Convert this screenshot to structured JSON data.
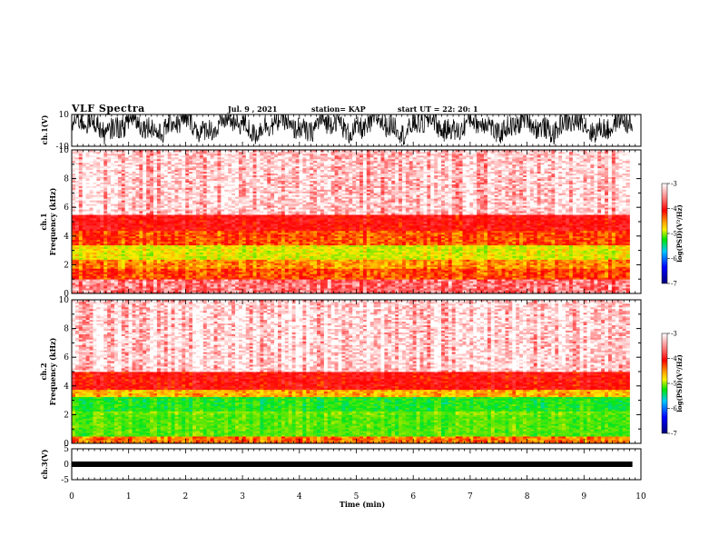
{
  "header": {
    "title": "VLF Spectra",
    "date": "Jul. 9 , 2021",
    "station": "station= KAP",
    "start_ut": "start UT = 22: 20: 1"
  },
  "chart_data": [
    {
      "type": "line",
      "name": "ch1-waveform",
      "ylabel": "ch.1(V)",
      "ylim": [
        -10,
        10
      ],
      "yticks": [
        "10",
        "-10"
      ],
      "xlim": [
        0,
        10
      ],
      "color": "#000000"
    },
    {
      "type": "heatmap",
      "name": "ch1-spectrogram",
      "ylabel": "ch.1 Frequency (kHz)",
      "ylabel_line1": "ch.1",
      "ylabel_line2": "Frequency (kHz)",
      "ylim": [
        0,
        10
      ],
      "yticks": [
        "0",
        "2",
        "4",
        "6",
        "8",
        "10"
      ],
      "xlim": [
        0,
        9.8
      ],
      "bands_khz": [
        {
          "from": 0,
          "to": 1.0,
          "level": -3.4
        },
        {
          "from": 1.0,
          "to": 1.8,
          "level": -4.1
        },
        {
          "from": 1.8,
          "to": 2.4,
          "level": -4.3
        },
        {
          "from": 2.4,
          "to": 3.4,
          "level": -4.7
        },
        {
          "from": 3.4,
          "to": 4.4,
          "level": -4.1
        },
        {
          "from": 4.4,
          "to": 5.5,
          "level": -3.8
        },
        {
          "from": 5.5,
          "to": 10.0,
          "level": -3.15
        }
      ],
      "colorbar": {
        "label": "log(PSD)(V²/Hz)",
        "range": [
          -7,
          -3
        ],
        "ticks": [
          "-3",
          "-4",
          "-5",
          "-6",
          "-7"
        ],
        "colors": [
          "#ffffff",
          "#ff0000",
          "#ffee00",
          "#00e600",
          "#00c8ff",
          "#0000ff",
          "#00007a"
        ]
      }
    },
    {
      "type": "heatmap",
      "name": "ch2-spectrogram",
      "ylabel": "ch.2 Frequency (kHz)",
      "ylabel_line1": "ch.2",
      "ylabel_line2": "Frequency (kHz)",
      "ylim": [
        0,
        10
      ],
      "yticks": [
        "0",
        "2",
        "4",
        "6",
        "8",
        "10"
      ],
      "xlim": [
        0,
        9.8
      ],
      "bands_khz": [
        {
          "from": 0,
          "to": 0.5,
          "level": -4.2
        },
        {
          "from": 0.5,
          "to": 2.0,
          "level": -5.1
        },
        {
          "from": 2.0,
          "to": 2.3,
          "level": -5.0
        },
        {
          "from": 2.3,
          "to": 3.2,
          "level": -5.3
        },
        {
          "from": 3.2,
          "to": 3.8,
          "level": -4.4
        },
        {
          "from": 3.8,
          "to": 5.0,
          "level": -3.8
        },
        {
          "from": 5.0,
          "to": 10.0,
          "level": -3.1
        }
      ],
      "colorbar": {
        "label": "log(PSD)(V²/Hz)",
        "range": [
          -7,
          -3
        ],
        "ticks": [
          "-3",
          "-4",
          "-5",
          "-6",
          "-7"
        ]
      }
    },
    {
      "type": "line",
      "name": "ch3-waveform",
      "ylabel": "ch.3(V)",
      "ylim": [
        -5,
        5
      ],
      "yticks": [
        "5",
        "0",
        "-5"
      ],
      "xlim": [
        0,
        10
      ],
      "level_v": 0,
      "color": "#000000"
    }
  ],
  "xaxis": {
    "label": "Time (min)",
    "ticks": [
      "0",
      "1",
      "2",
      "3",
      "4",
      "5",
      "6",
      "7",
      "8",
      "9",
      "10"
    ],
    "range": [
      0,
      10
    ]
  }
}
